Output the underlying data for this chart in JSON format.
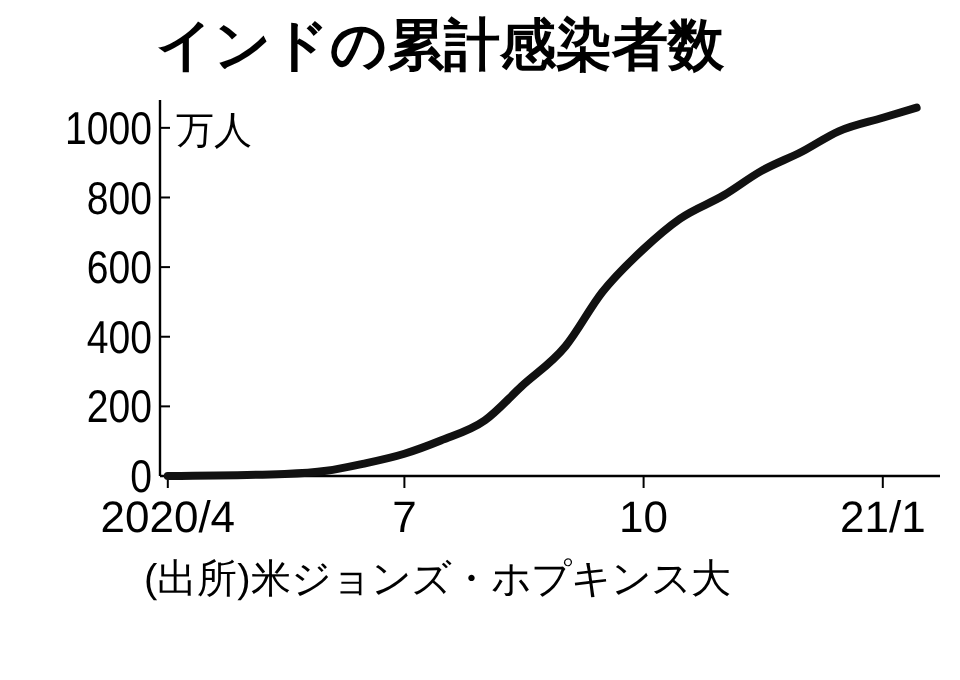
{
  "chart_data": {
    "type": "line",
    "title": "インドの累計感染者数",
    "ylabel": "万人",
    "annotations": [
      "(出所)米ジョンズ・ホプキンス大"
    ],
    "x": [
      "2020-04-01",
      "2020-05-16",
      "2020-06-01",
      "2020-06-15",
      "2020-07-01",
      "2020-07-15",
      "2020-08-01",
      "2020-08-15",
      "2020-09-01",
      "2020-09-15",
      "2020-10-01",
      "2020-10-15",
      "2020-11-01",
      "2020-11-15",
      "2020-12-01",
      "2020-12-15",
      "2021-01-01",
      "2021-01-14"
    ],
    "series": [
      {
        "color": "#111111",
        "values": [
          0,
          6,
          15,
          35,
          64,
          102,
          160,
          257,
          373,
          527,
          652,
          739,
          807,
          875,
          932,
          990,
          1029,
          1058
        ]
      }
    ],
    "xlim": [
      "2020-03-29",
      "2021-01-23"
    ],
    "ylim": [
      0,
      1080
    ],
    "xticks": [
      {
        "value": "2020-04-01",
        "label": "2020/4"
      },
      {
        "value": "2020-07-01",
        "label": "7"
      },
      {
        "value": "2020-10-01",
        "label": "10"
      },
      {
        "value": "2021-01-01",
        "label": "21/1"
      }
    ],
    "yticks": [
      0,
      200,
      400,
      600,
      800,
      1000
    ],
    "marker": "none",
    "line_style": "solid"
  }
}
